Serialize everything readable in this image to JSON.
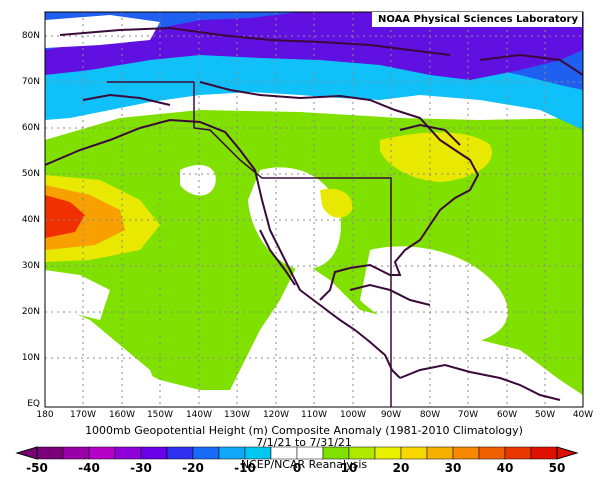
{
  "credit": "NOAA Physical Sciences Laboratory",
  "title_line1": "1000mb Geopotential Height (m) Composite Anomaly (1981-2010 Climatology)",
  "title_line2": "7/1/21  to 7/31/21",
  "title_line3": "NCEP/NCAR Reanalysis",
  "lat_labels": [
    "80N",
    "70N",
    "60N",
    "50N",
    "40N",
    "30N",
    "20N",
    "10N",
    "EQ"
  ],
  "lon_labels": [
    "180",
    "170W",
    "160W",
    "150W",
    "140W",
    "130W",
    "120W",
    "110W",
    "100W",
    "90W",
    "80W",
    "70W",
    "60W",
    "50W",
    "40W"
  ],
  "colorbar": {
    "labels": [
      "-50",
      "-40",
      "-30",
      "-20",
      "-10",
      "0",
      "10",
      "20",
      "30",
      "40",
      "50"
    ],
    "colors": [
      "#7a007a",
      "#9a00a8",
      "#b500c8",
      "#9000d8",
      "#6a00e8",
      "#3030f0",
      "#1a6af8",
      "#10a8f8",
      "#00c8f0",
      "#ffffff",
      "#ffffff",
      "#80e000",
      "#b0e800",
      "#e8f000",
      "#f8d800",
      "#f8b000",
      "#f88800",
      "#f06000",
      "#e83800",
      "#e01000"
    ]
  },
  "colors": {
    "blue": "#2060f0",
    "light_blue": "#10c0f8",
    "purple": "#6010e0",
    "green": "#80e000",
    "yellow": "#e8e800",
    "orange": "#f8a000",
    "red": "#f03000"
  }
}
